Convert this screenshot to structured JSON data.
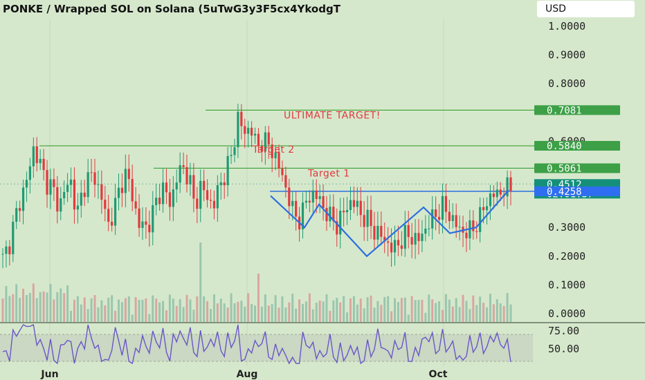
{
  "header": {
    "title": "PONKE / Wrapped SOL on Solana (5uTwG3y3F5cx4YkodgT",
    "currency_button": "USD"
  },
  "colors": {
    "background": "#d6e8cc",
    "up": "#1f9a73",
    "down": "#e0393e",
    "level_line": "#3aa035",
    "pattern": "#2b6fe0",
    "rsi": "#6a55c7",
    "label_green": "#3da047",
    "label_blue": "#2f6ef0",
    "label_teal": "#14907a"
  },
  "chart_data": [
    {
      "type": "candlestick",
      "title": "PONKE / Wrapped SOL on Solana (5uTwG3y3F5cx4YkodgT",
      "y_axis": {
        "ticks": [
          "1.0000",
          "0.9000",
          "0.8000",
          "0.6000",
          "0.3000",
          "0.2000",
          "0.1000",
          "0.0000"
        ],
        "ylim": [
          0,
          1.0
        ],
        "position": "right"
      },
      "x_axis": {
        "ticks": [
          "Jun",
          "Aug",
          "Oct"
        ]
      },
      "price_close_approx": [
        0.19,
        0.24,
        0.33,
        0.41,
        0.47,
        0.58,
        0.52,
        0.46,
        0.44,
        0.37,
        0.43,
        0.46,
        0.34,
        0.44,
        0.48,
        0.47,
        0.4,
        0.31,
        0.36,
        0.45,
        0.49,
        0.4,
        0.31,
        0.3,
        0.33,
        0.41,
        0.44,
        0.38,
        0.47,
        0.51,
        0.48,
        0.37,
        0.45,
        0.4,
        0.38,
        0.44,
        0.5,
        0.55,
        0.69,
        0.62,
        0.66,
        0.57,
        0.61,
        0.58,
        0.55,
        0.48,
        0.42,
        0.34,
        0.33,
        0.39,
        0.42,
        0.4,
        0.36,
        0.33,
        0.31,
        0.35,
        0.39,
        0.38,
        0.34,
        0.32,
        0.29,
        0.27,
        0.25,
        0.22,
        0.25,
        0.27,
        0.27,
        0.25,
        0.29,
        0.32,
        0.35,
        0.37,
        0.35,
        0.31,
        0.29,
        0.28,
        0.3,
        0.33,
        0.39,
        0.41,
        0.42,
        0.43,
        0.44
      ],
      "annotations": [
        {
          "text": "ULTIMATE TARGET!",
          "price": 0.7081
        },
        {
          "text": "Target 2",
          "price": 0.584
        },
        {
          "text": "Target 1",
          "price": 0.5061
        }
      ],
      "levels": [
        {
          "label": "0.7081",
          "price": 0.7081
        },
        {
          "label": "0.5840",
          "price": 0.584
        },
        {
          "label": "0.5061",
          "price": 0.5061
        },
        {
          "label": "0.4512",
          "price": 0.4512,
          "countdown": "02:01:37"
        },
        {
          "label": "0.4258",
          "price": 0.4258
        }
      ],
      "legend": "none"
    },
    {
      "type": "bar",
      "series_name": "Volume",
      "note": "volume bars at chart bottom, relative heights"
    },
    {
      "type": "line",
      "series_name": "RSI",
      "y_axis": {
        "ticks": [
          "75.00",
          "50.00"
        ]
      }
    }
  ]
}
